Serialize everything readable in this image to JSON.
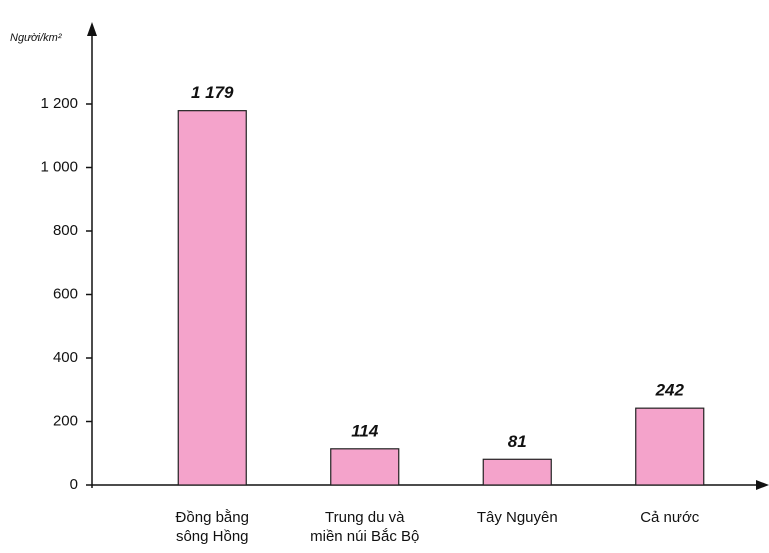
{
  "chart_data": {
    "type": "bar",
    "y_label": "Người/km²",
    "categories": [
      "Đồng bằng\nsông Hồng",
      "Trung du và\nmiền núi Bắc Bộ",
      "Tây Nguyên",
      "Cả nước"
    ],
    "values": [
      1179,
      114,
      81,
      242
    ],
    "value_labels": [
      "1 179",
      "114",
      "81",
      "242"
    ],
    "color": "#f4a3cb",
    "ylim": [
      0,
      1200
    ],
    "yticks": [
      0,
      200,
      400,
      600,
      800,
      {
        "value": 1000,
        "label": "1 000"
      },
      {
        "value": 1200,
        "label": "1 200"
      }
    ]
  }
}
